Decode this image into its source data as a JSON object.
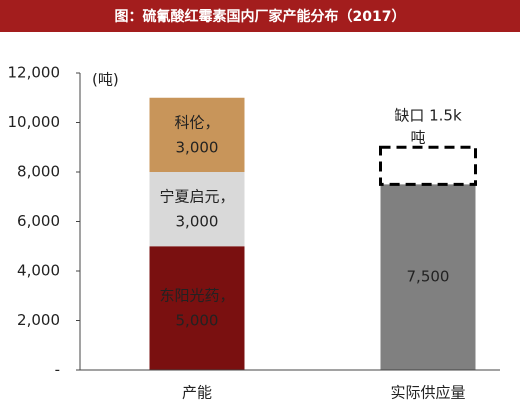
{
  "chart_data": {
    "type": "stacked-bar",
    "title": "图：硫氰酸红霉素国内厂家产能分布（2017）",
    "y_unit": "(吨)",
    "categories": [
      "产能",
      "实际供应量"
    ],
    "ylim": [
      0,
      12000
    ],
    "yticks": [
      {
        "value": 0,
        "label": "-"
      },
      {
        "value": 2000,
        "label": "2,000"
      },
      {
        "value": 4000,
        "label": "4,000"
      },
      {
        "value": 6000,
        "label": "6,000"
      },
      {
        "value": 8000,
        "label": "8,000"
      },
      {
        "value": 10000,
        "label": "10,000"
      },
      {
        "value": 12000,
        "label": "12,000"
      }
    ],
    "series": [
      {
        "name": "东阳光药，",
        "color": "#7a1010",
        "values": [
          5000,
          null
        ],
        "value_labels": [
          "5,000",
          null
        ]
      },
      {
        "name": "宁夏启元，",
        "color": "#d9d9d9",
        "values": [
          3000,
          null
        ],
        "value_labels": [
          "3,000",
          null
        ]
      },
      {
        "name": "科伦，",
        "color": "#c8955a",
        "values": [
          3000,
          null
        ],
        "value_labels": [
          "3,000",
          null
        ]
      },
      {
        "color": "#808080",
        "values": [
          null,
          7500
        ],
        "value_labels": [
          null,
          "7,500"
        ]
      },
      {
        "color": "#000000",
        "dashed": true,
        "values": [
          null,
          1500
        ],
        "value_labels": [
          null,
          "缺口 1.5k\n吨"
        ]
      }
    ]
  }
}
